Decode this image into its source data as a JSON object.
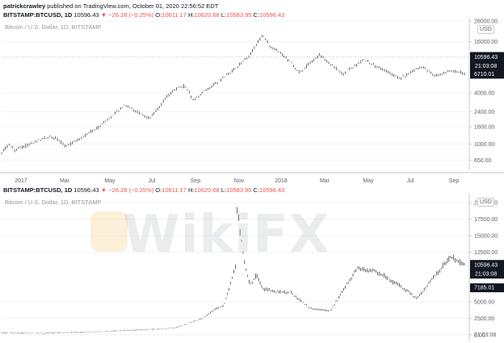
{
  "header": {
    "author": "patrickcrawley",
    "published_text": "published on TradingView.com, October 01, 2020 22:56:52 EDT"
  },
  "ohlc": {
    "symbol": "BITSTAMP:BTCUSD, 1D",
    "last": "10596.43",
    "change": "▼ −26.28 (−0.25%)",
    "o_label": "O:",
    "o_value": "10611.17",
    "h_label": "H:",
    "h_value": "10620.68",
    "l_label": "L:",
    "l_value": "10583.95",
    "c_label": "C:",
    "c_value": "10596.43"
  },
  "subtitle": "Bitcoin / U.S. Dollar, 1D, BITSTAMP",
  "currency": "USD",
  "watermark": "WikiFX",
  "colors": {
    "candle": "#000000",
    "price_label_bg": "#131722",
    "price_label_text": "#ffffff",
    "grid": "#f0f3fa",
    "axis_text": "#5d606b",
    "negative": "#ef5350"
  },
  "chart_data": [
    {
      "type": "line",
      "scale": "log",
      "title": "Bitcoin / U.S. Dollar, 1D, BITSTAMP",
      "xlabel": "",
      "ylabel": "",
      "x_ticks": [
        "2017",
        "Mar",
        "May",
        "Jul",
        "Sep",
        "Nov",
        "2018",
        "Mar",
        "May",
        "Jul",
        "Sep"
      ],
      "y_ticks": [
        "28000.00",
        "16000.00",
        "10596.43",
        "21:03:08",
        "6710.01",
        "4000.00",
        "2400.00",
        "1600.00",
        "1000.00",
        "650.00"
      ],
      "ylim": [
        550,
        28000
      ],
      "last_price": "10596.43",
      "countdown": "21:03:08",
      "secondary_price": "6710.01",
      "x": [
        "2016-12-25",
        "2017-01-04",
        "2017-01-12",
        "2017-02-01",
        "2017-03-03",
        "2017-03-24",
        "2017-04-15",
        "2017-05-15",
        "2017-06-11",
        "2017-07-16",
        "2017-08-15",
        "2017-09-02",
        "2017-09-14",
        "2017-10-01",
        "2017-11-01",
        "2017-11-28",
        "2017-12-17",
        "2017-12-30",
        "2018-01-16",
        "2018-02-06",
        "2018-03-05",
        "2018-04-06",
        "2018-05-05",
        "2018-06-24",
        "2018-07-24",
        "2018-08-10",
        "2018-09-05",
        "2018-09-20"
      ],
      "series": [
        {
          "values": [
            800,
            1000,
            850,
            1000,
            1250,
            950,
            1200,
            1800,
            2900,
            2000,
            4200,
            4900,
            3300,
            4300,
            6700,
            10500,
            19000,
            13500,
            11000,
            6900,
            11200,
            6700,
            9800,
            5900,
            8200,
            6300,
            7300,
            6700
          ]
        }
      ]
    },
    {
      "type": "line",
      "scale": "linear",
      "title": "Bitcoin / U.S. Dollar, 1D, BITSTAMP",
      "xlabel": "",
      "ylabel": "",
      "y_ticks": [
        "20000.00",
        "17500.00",
        "15000.00",
        "12500.00",
        "10596.43",
        "21:03:08",
        "7185.01",
        "5000.00",
        "2500.00",
        "0.00"
      ],
      "ylim": [
        -500,
        21000
      ],
      "last_price": "10596.43",
      "countdown": "21:03:08",
      "secondary_price": "7185.01",
      "x": [
        "2015-01",
        "2015-07",
        "2016-01",
        "2016-07",
        "2017-01",
        "2017-03",
        "2017-05",
        "2017-07",
        "2017-09",
        "2017-10",
        "2017-11",
        "2017-12",
        "2017-12-17",
        "2018-01",
        "2018-02",
        "2018-03",
        "2018-04",
        "2018-06",
        "2018-08",
        "2018-11",
        "2019-02",
        "2019-06",
        "2019-09",
        "2020-01",
        "2020-03",
        "2020-06",
        "2020-08",
        "2020-10"
      ],
      "series": [
        {
          "values": [
            300,
            250,
            400,
            650,
            900,
            1100,
            1800,
            2500,
            4000,
            4300,
            7000,
            11000,
            19500,
            12000,
            7500,
            9000,
            7000,
            6500,
            6500,
            4000,
            3600,
            10000,
            9500,
            7000,
            5500,
            9500,
            11800,
            10600
          ]
        }
      ]
    }
  ]
}
